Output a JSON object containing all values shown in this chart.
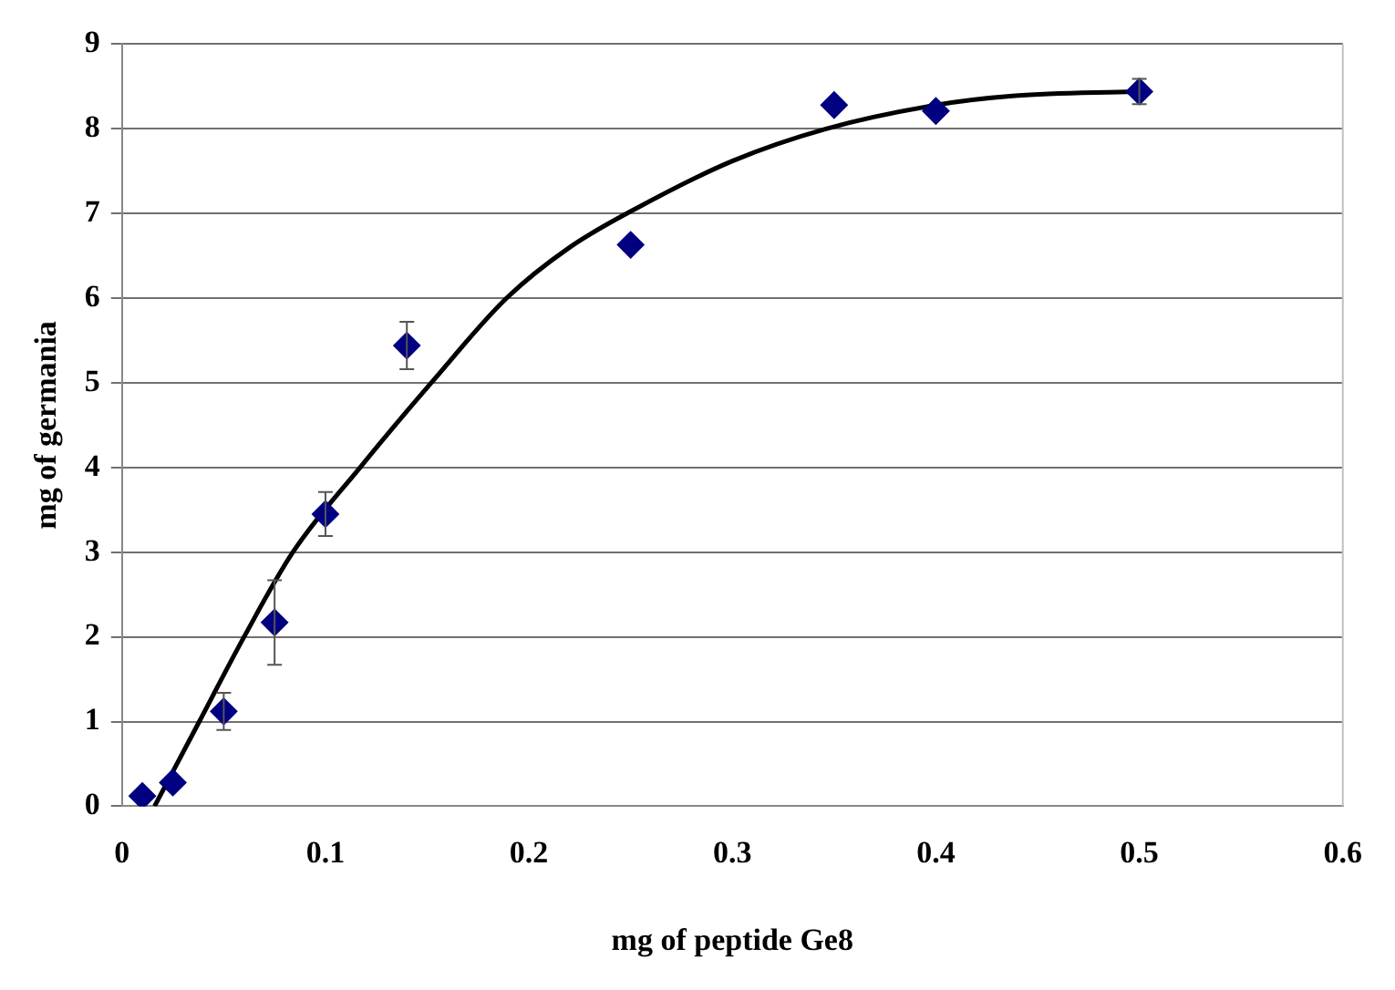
{
  "chart_data": {
    "type": "scatter",
    "xlabel": "mg of peptide Ge8",
    "ylabel": "mg of germania",
    "xlim": [
      0,
      0.6
    ],
    "xticks": [
      0,
      0.1,
      0.2,
      0.3,
      0.4,
      0.5,
      0.6
    ],
    "ylim": [
      0,
      9
    ],
    "yticks": [
      0,
      1,
      2,
      3,
      4,
      5,
      6,
      7,
      8,
      9
    ],
    "grid": "y",
    "legend": false,
    "series": [
      {
        "color": "#000080",
        "marker": "diamond",
        "x": [
          0.01,
          0.025,
          0.05,
          0.075,
          0.1,
          0.14,
          0.25,
          0.35,
          0.4,
          0.5
        ],
        "values": [
          0.12,
          0.28,
          1.12,
          2.17,
          3.45,
          5.44,
          6.63,
          8.28,
          8.21,
          8.44
        ],
        "errors": [
          null,
          null,
          0.22,
          0.5,
          0.26,
          0.28,
          null,
          null,
          null,
          0.15
        ]
      },
      {
        "type": "line",
        "color": "#000000",
        "marker": "none",
        "line_style": "solid",
        "x": [
          0.016,
          0.038,
          0.06,
          0.084,
          0.117,
          0.152,
          0.189,
          0.22,
          0.252,
          0.3,
          0.346,
          0.4,
          0.439,
          0.498
        ],
        "values": [
          0,
          1,
          2,
          3,
          4,
          5,
          6,
          6.6,
          7.05,
          7.62,
          8,
          8.28,
          8.39,
          8.44
        ]
      }
    ]
  }
}
